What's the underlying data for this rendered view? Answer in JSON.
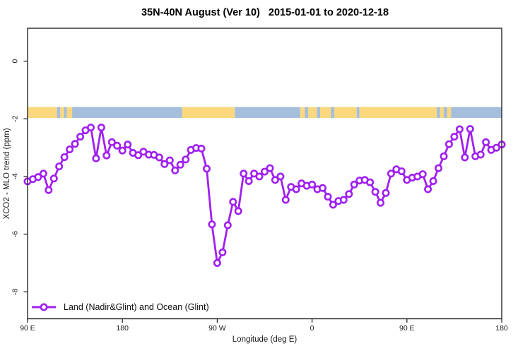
{
  "legend_label": "Land (Nadir&Glint) and Ocean (Glint)",
  "colors": {
    "series_purple": "#A020F0",
    "land_band": "#FBD87E",
    "ocean_band": "#A5BEDC",
    "axis": "#262626",
    "text": "#1a1a1a"
  },
  "chart_data": {
    "type": "line",
    "title": "35N-40N August (Ver 10)   2015-01-01 to 2020-12-18",
    "xlabel": "Longitude (deg E)",
    "ylabel": "XCO2 - MLO trend (ppm)",
    "grid": false,
    "legend_position": "bottom-left",
    "x_axis": {
      "tick_labels": [
        "90 E",
        "180",
        "90 W",
        "0",
        "90 E",
        "180"
      ],
      "tick_positions_deg_unwrapped": [
        90,
        180,
        270,
        360,
        450,
        540
      ],
      "range_deg_unwrapped": [
        90,
        540
      ],
      "wraps_longitude": true
    },
    "y_axis": {
      "tick_labels": [
        "0",
        "-2",
        "-4",
        "-6",
        "-8"
      ],
      "tick_values": [
        0,
        -2,
        -4,
        -6,
        -8
      ],
      "range": [
        1.1,
        -8.9
      ]
    },
    "series": [
      {
        "name": "Land (Nadir&Glint) and Ocean (Glint)",
        "color": "#A020F0",
        "marker": "open-circle",
        "longitudes_deg_east": [
          90,
          95,
          100,
          105,
          110,
          115,
          120,
          125,
          130,
          135,
          140,
          145,
          150,
          155,
          160,
          165,
          170,
          175,
          180,
          -175,
          -170,
          -165,
          -160,
          -155,
          -150,
          -145,
          -140,
          -135,
          -130,
          -125,
          -120,
          -115,
          -110,
          -105,
          -100,
          -95,
          -90,
          -85,
          -80,
          -75,
          -70,
          -65,
          -60,
          -55,
          -50,
          -45,
          -40,
          -35,
          -30,
          -25,
          -20,
          -15,
          -10,
          -5,
          0,
          5,
          10,
          15,
          20,
          25,
          30,
          35,
          40,
          45,
          50,
          55,
          60,
          65,
          70,
          75,
          80,
          85,
          90,
          95,
          100,
          105,
          110,
          115,
          120,
          125,
          130,
          135,
          140,
          145,
          150,
          155,
          160,
          165,
          170,
          175,
          180
        ],
        "values_ppm": [
          -4.17,
          -4.09,
          -4.02,
          -3.9,
          -4.47,
          -4.07,
          -3.65,
          -3.33,
          -3.06,
          -2.87,
          -2.62,
          -2.4,
          -2.3,
          -3.37,
          -2.3,
          -3.27,
          -2.81,
          -2.93,
          -3.1,
          -2.89,
          -3.18,
          -3.26,
          -3.14,
          -3.24,
          -3.25,
          -3.34,
          -3.57,
          -3.44,
          -3.79,
          -3.59,
          -3.41,
          -3.08,
          -3.01,
          -3.03,
          -3.73,
          -5.66,
          -7.0,
          -6.63,
          -5.69,
          -4.88,
          -5.2,
          -3.9,
          -4.16,
          -3.9,
          -4.0,
          -3.83,
          -3.71,
          -4.12,
          -4.0,
          -4.81,
          -4.36,
          -4.44,
          -4.24,
          -4.32,
          -4.28,
          -4.44,
          -4.4,
          -4.7,
          -4.98,
          -4.85,
          -4.81,
          -4.61,
          -4.28,
          -4.14,
          -4.12,
          -4.2,
          -4.53,
          -4.91,
          -4.57,
          -3.9,
          -3.75,
          -3.82,
          -4.12,
          -4.04,
          -4.0,
          -3.92,
          -4.44,
          -4.16,
          -3.71,
          -3.3,
          -2.88,
          -2.62,
          -2.36,
          -3.34,
          -2.35,
          -3.3,
          -3.24,
          -2.81,
          -3.08,
          -3.0,
          -2.89
        ]
      }
    ],
    "surface_type_band": {
      "y_top_value": -1.59,
      "y_bottom_value": -1.97,
      "colors": {
        "land": "#FBD87E",
        "ocean": "#A5BEDC"
      },
      "segments": [
        {
          "from": 0.0,
          "to": 0.062,
          "type": "land"
        },
        {
          "from": 0.062,
          "to": 0.069,
          "type": "ocean"
        },
        {
          "from": 0.069,
          "to": 0.077,
          "type": "land"
        },
        {
          "from": 0.077,
          "to": 0.083,
          "type": "ocean"
        },
        {
          "from": 0.083,
          "to": 0.094,
          "type": "land"
        },
        {
          "from": 0.094,
          "to": 0.326,
          "type": "ocean"
        },
        {
          "from": 0.326,
          "to": 0.437,
          "type": "land"
        },
        {
          "from": 0.437,
          "to": 0.575,
          "type": "ocean"
        },
        {
          "from": 0.575,
          "to": 0.585,
          "type": "land"
        },
        {
          "from": 0.585,
          "to": 0.592,
          "type": "ocean"
        },
        {
          "from": 0.592,
          "to": 0.61,
          "type": "land"
        },
        {
          "from": 0.61,
          "to": 0.617,
          "type": "ocean"
        },
        {
          "from": 0.617,
          "to": 0.64,
          "type": "land"
        },
        {
          "from": 0.64,
          "to": 0.647,
          "type": "ocean"
        },
        {
          "from": 0.647,
          "to": 0.694,
          "type": "land"
        },
        {
          "from": 0.694,
          "to": 0.7,
          "type": "ocean"
        },
        {
          "from": 0.7,
          "to": 0.863,
          "type": "land"
        },
        {
          "from": 0.863,
          "to": 0.87,
          "type": "ocean"
        },
        {
          "from": 0.87,
          "to": 0.878,
          "type": "land"
        },
        {
          "from": 0.878,
          "to": 0.885,
          "type": "ocean"
        },
        {
          "from": 0.885,
          "to": 0.893,
          "type": "land"
        },
        {
          "from": 0.893,
          "to": 1.0,
          "type": "ocean"
        }
      ]
    }
  }
}
